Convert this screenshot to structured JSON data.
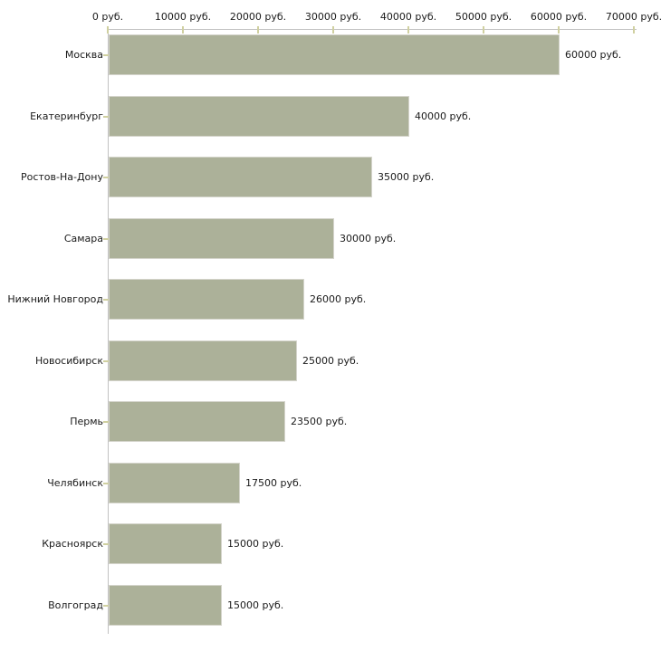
{
  "chart_data": {
    "type": "bar",
    "orientation": "horizontal",
    "title": "",
    "xlabel": "",
    "ylabel": "",
    "unit": "руб.",
    "categories": [
      "Москва",
      "Екатеринбург",
      "Ростов-На-Дону",
      "Самара",
      "Нижний Новгород",
      "Новосибирск",
      "Пермь",
      "Челябинск",
      "Красноярск",
      "Волгоград"
    ],
    "values": [
      60000,
      40000,
      35000,
      30000,
      26000,
      25000,
      23500,
      17500,
      15000,
      15000
    ],
    "value_labels": [
      "60000 руб.",
      "40000 руб.",
      "35000 руб.",
      "30000 руб.",
      "26000 руб.",
      "25000 руб.",
      "23500 руб.",
      "17500 руб.",
      "15000 руб.",
      "15000 руб."
    ],
    "x_axis": {
      "position": "top",
      "min": 0,
      "max": 70000,
      "tick_values": [
        0,
        10000,
        20000,
        30000,
        40000,
        50000,
        60000,
        70000
      ],
      "tick_labels": [
        "0 руб.",
        "10000 руб.",
        "20000 руб.",
        "30000 руб.",
        "40000 руб.",
        "50000 руб.",
        "60000 руб.",
        "70000 руб."
      ]
    },
    "grid": false,
    "legend": false,
    "colors": {
      "bar_fill": "#acb199",
      "bar_border": "#d4d4cb",
      "axis_line": "#c2c2c2",
      "tick_mark": "#d0d0a0",
      "text": "#1a1a1a",
      "background": "#ffffff"
    }
  }
}
